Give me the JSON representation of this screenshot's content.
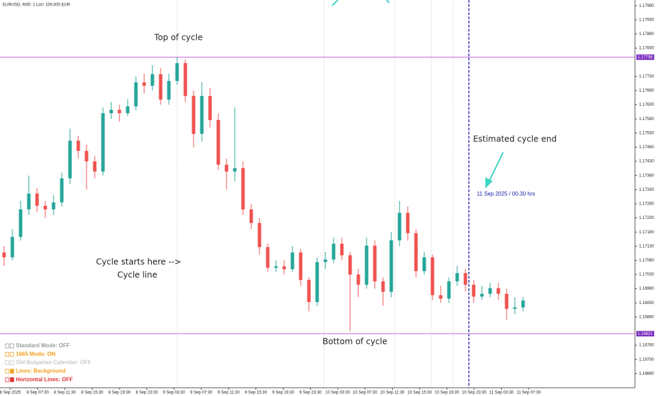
{
  "chart_data": {
    "type": "candlestick",
    "title": "EURUSD, M30:  1 Lot= 100,000 EUR",
    "up_color": "#26a69a",
    "down_color": "#ef5350",
    "open": [
      1.17108,
      1.17091,
      1.17163,
      1.1726,
      1.17316,
      1.17273,
      1.1726,
      1.17285,
      1.1737,
      1.17503,
      1.17467,
      1.1743,
      1.17394,
      1.176,
      1.17612,
      1.176,
      1.17624,
      1.17709,
      1.17697,
      1.17738,
      1.17648,
      1.17714,
      1.17777,
      1.17661,
      1.17527,
      1.17661,
      1.17576,
      1.17418,
      1.17394,
      1.17406,
      1.1726,
      1.17212,
      1.17127,
      1.17054,
      1.17059,
      1.17049,
      1.17108,
      1.17011,
      1.16933,
      1.17074,
      1.17083,
      1.17139,
      1.17098,
      1.1703,
      1.16994,
      1.17132,
      1.17006,
      1.16969,
      1.17151,
      1.17248,
      1.17176,
      1.17042,
      1.17091,
      1.16957,
      1.16945,
      1.17006,
      1.17035,
      1.16994,
      1.16952,
      1.16962,
      1.16982,
      1.16962,
      1.16909,
      1.16914
    ],
    "high": [
      1.1713,
      1.1719,
      1.1729,
      1.1738,
      1.17335,
      1.1729,
      1.1731,
      1.1739,
      1.17545,
      1.1752,
      1.1749,
      1.1745,
      1.1762,
      1.1764,
      1.1763,
      1.1765,
      1.1773,
      1.1774,
      1.1777,
      1.1776,
      1.1774,
      1.17797,
      1.1779,
      1.1768,
      1.1771,
      1.1769,
      1.176,
      1.1744,
      1.1762,
      1.1743,
      1.1728,
      1.1723,
      1.1714,
      1.1708,
      1.1708,
      1.1713,
      1.1712,
      1.1702,
      1.1709,
      1.1711,
      1.1716,
      1.1716,
      1.1711,
      1.1705,
      1.1716,
      1.1715,
      1.1702,
      1.1718,
      1.1729,
      1.1727,
      1.1719,
      1.1711,
      1.171,
      1.1699,
      1.1702,
      1.1706,
      1.1705,
      1.1701,
      1.1699,
      1.17,
      1.17,
      1.1698,
      1.1695,
      1.1695
    ],
    "low": [
      1.1706,
      1.1708,
      1.1715,
      1.1724,
      1.1725,
      1.1723,
      1.1724,
      1.1727,
      1.1735,
      1.1744,
      1.1733,
      1.1737,
      1.1738,
      1.1758,
      1.1757,
      1.1759,
      1.1761,
      1.1767,
      1.1768,
      1.1763,
      1.1763,
      1.177,
      1.1764,
      1.1748,
      1.175,
      1.1755,
      1.174,
      1.1733,
      1.1736,
      1.1724,
      1.1719,
      1.171,
      1.1704,
      1.1704,
      1.1703,
      1.1704,
      1.1699,
      1.169,
      1.1692,
      1.1705,
      1.1707,
      1.1708,
      1.1683,
      1.1695,
      1.1698,
      1.1698,
      1.1692,
      1.1695,
      1.1713,
      1.1715,
      1.1702,
      1.1703,
      1.1694,
      1.1693,
      1.1693,
      1.1699,
      1.1697,
      1.1693,
      1.1694,
      1.1695,
      1.1694,
      1.1687,
      1.1689,
      1.169
    ],
    "close": [
      1.17091,
      1.17163,
      1.1726,
      1.17316,
      1.17273,
      1.1726,
      1.17285,
      1.1737,
      1.17503,
      1.17467,
      1.1743,
      1.17394,
      1.176,
      1.17612,
      1.176,
      1.17624,
      1.17709,
      1.17697,
      1.17738,
      1.17648,
      1.17714,
      1.17777,
      1.17661,
      1.17527,
      1.17661,
      1.17576,
      1.17418,
      1.17394,
      1.17406,
      1.1726,
      1.17212,
      1.17127,
      1.17054,
      1.17059,
      1.17049,
      1.17108,
      1.17011,
      1.16933,
      1.17074,
      1.17083,
      1.17139,
      1.17098,
      1.1703,
      1.16994,
      1.17132,
      1.17006,
      1.16969,
      1.17151,
      1.17248,
      1.17176,
      1.17042,
      1.17091,
      1.16957,
      1.16945,
      1.17006,
      1.17035,
      1.16994,
      1.16952,
      1.16962,
      1.16982,
      1.16962,
      1.16909,
      1.16914,
      1.16938
    ],
    "ylim": [
      1.1663,
      1.18
    ],
    "yticks": [
      {
        "value": 1.1798,
        "label": "1.17980"
      },
      {
        "value": 1.1793,
        "label": "1.17930"
      },
      {
        "value": 1.1788,
        "label": "1.17880"
      },
      {
        "value": 1.1783,
        "label": "1.17830"
      },
      {
        "value": 1.1773,
        "label": "1.17730"
      },
      {
        "value": 1.1768,
        "label": "1.17680"
      },
      {
        "value": 1.1763,
        "label": "1.17630"
      },
      {
        "value": 1.1758,
        "label": "1.17580"
      },
      {
        "value": 1.1753,
        "label": "1.17530"
      },
      {
        "value": 1.1748,
        "label": "1.17480"
      },
      {
        "value": 1.1743,
        "label": "1.17430"
      },
      {
        "value": 1.1738,
        "label": "1.17380"
      },
      {
        "value": 1.1733,
        "label": "1.17330"
      },
      {
        "value": 1.1728,
        "label": "1.17280"
      },
      {
        "value": 1.1723,
        "label": "1.17230"
      },
      {
        "value": 1.1718,
        "label": "1.17180"
      },
      {
        "value": 1.1713,
        "label": "1.17130"
      },
      {
        "value": 1.1708,
        "label": "1.17080"
      },
      {
        "value": 1.1703,
        "label": "1.17030"
      },
      {
        "value": 1.1698,
        "label": "1.16980"
      },
      {
        "value": 1.1693,
        "label": "1.16930"
      },
      {
        "value": 1.1688,
        "label": "1.16880"
      },
      {
        "value": 1.1678,
        "label": "1.16780"
      },
      {
        "value": 1.1673,
        "label": "1.16730"
      },
      {
        "value": 1.1668,
        "label": "1.16680"
      }
    ],
    "levels": [
      1.17798,
      1.16821
    ],
    "level_color": "#c266d6",
    "x_labels": [
      "8 Sep 2025",
      "8 Sep 07:30",
      "8 Sep 11:30",
      "8 Sep 15:30",
      "8 Sep 19:30",
      "8 Sep 23:30",
      "9 Sep 03:30",
      "9 Sep 07:30",
      "9 Sep 11:30",
      "9 Sep 15:30",
      "9 Sep 19:30",
      "9 Sep 23:30",
      "10 Sep 03:30",
      "10 Sep 07:30",
      "10 Sep 11:30",
      "10 Sep 15:30",
      "10 Sep 19:30",
      "10 Sep 23:30",
      "11 Sep 03:30",
      "11 Sep 07:30"
    ],
    "annotations": {
      "top": "Top of cycle",
      "end": "Estimated cycle end",
      "end_time": "11 Sep 2025 / 00.30 hrs",
      "start": "Cycle starts here -->",
      "line": "Cycle line",
      "bottom": "Bottom of cycle"
    },
    "settings": [
      "Standard Mode: OFF",
      "1665 Mode: ON",
      "Old Bulgarian Calendar: OFF",
      "Lines: Background",
      "Horizontal Lines: OFF"
    ]
  }
}
